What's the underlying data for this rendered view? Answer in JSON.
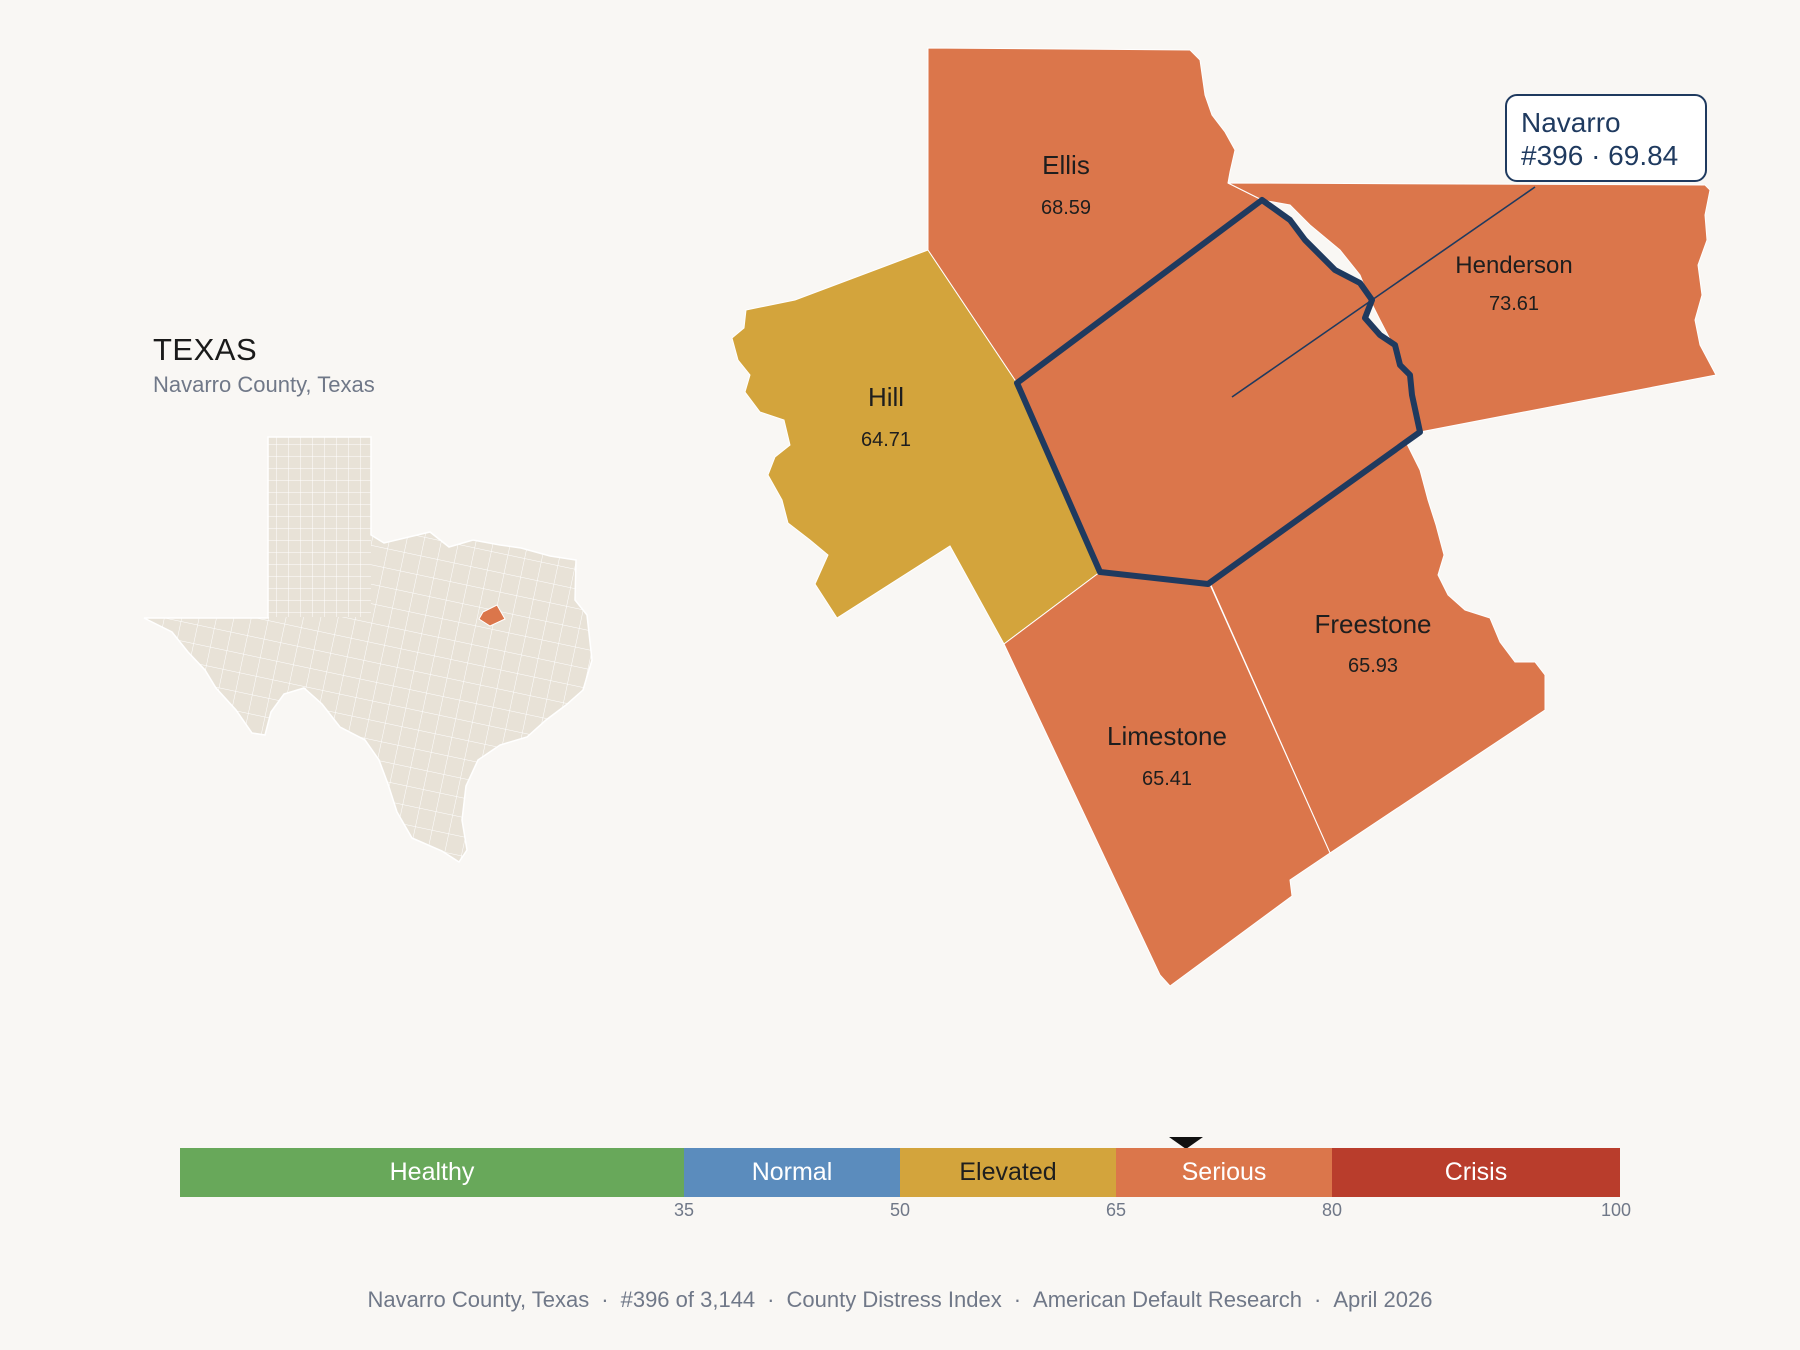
{
  "state": {
    "title": "TEXAS",
    "subtitle": "Navarro County, Texas"
  },
  "colors": {
    "elevated": "#d3a43c",
    "serious": "#db764b",
    "highlight_outline": "#1f3a5f",
    "inset_fill": "#e8e2d7"
  },
  "counties": [
    {
      "name": "Ellis",
      "score": "68.59",
      "band": "serious"
    },
    {
      "name": "Hill",
      "score": "64.71",
      "band": "elevated"
    },
    {
      "name": "Henderson",
      "score": "73.61",
      "band": "serious"
    },
    {
      "name": "Freestone",
      "score": "65.93",
      "band": "serious"
    },
    {
      "name": "Limestone",
      "score": "65.41",
      "band": "serious"
    },
    {
      "name": "Navarro",
      "score": "69.84",
      "band": "serious"
    }
  ],
  "callout": {
    "line1": "Navarro",
    "line2": "#396 · 69.84"
  },
  "scale": {
    "segments": [
      {
        "label": "Healthy",
        "min": 0,
        "max": 35,
        "color": "#68a85a",
        "text_color": "#ffffff"
      },
      {
        "label": "Normal",
        "min": 35,
        "max": 50,
        "color": "#5b8cbd",
        "text_color": "#ffffff"
      },
      {
        "label": "Elevated",
        "min": 50,
        "max": 65,
        "color": "#d3a43c",
        "text_color": "#1e1e1e"
      },
      {
        "label": "Serious",
        "min": 65,
        "max": 80,
        "color": "#db764b",
        "text_color": "#ffffff"
      },
      {
        "label": "Crisis",
        "min": 80,
        "max": 100,
        "color": "#b93d2c",
        "text_color": "#ffffff"
      }
    ],
    "ticks": [
      "35",
      "50",
      "65",
      "80",
      "100"
    ],
    "marker_value": 69.84
  },
  "footer": {
    "county": "Navarro County, Texas",
    "rank": "#396 of 3,144",
    "index": "County Distress Index",
    "org": "American Default Research",
    "date": "April 2026"
  }
}
